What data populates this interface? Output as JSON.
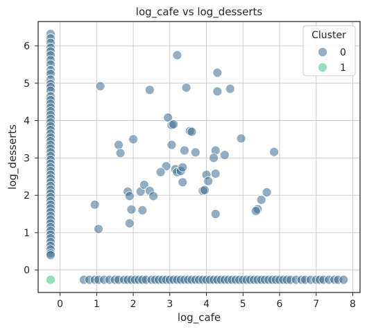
{
  "chart_data": {
    "type": "scatter",
    "title": "log_cafe vs log_desserts",
    "xlabel": "log_cafe",
    "ylabel": "log_desserts",
    "xlim": [
      -0.6,
      8.2
    ],
    "ylim": [
      -0.6,
      6.65
    ],
    "xticks": [
      0,
      1,
      2,
      3,
      4,
      5,
      6,
      7,
      8
    ],
    "yticks": [
      0,
      1,
      2,
      3,
      4,
      5,
      6
    ],
    "grid": true,
    "legend": {
      "title": "Cluster",
      "placement": "top-right",
      "entries": [
        {
          "label": "0",
          "color": "#3b6b90"
        },
        {
          "label": "1",
          "color": "#3ec27f"
        }
      ]
    },
    "series": [
      {
        "name": "0",
        "color": "#3b6b90",
        "points": [
          [
            -0.26,
            6.32
          ],
          [
            -0.26,
            6.2
          ],
          [
            -0.26,
            6.08
          ],
          [
            -0.26,
            5.95
          ],
          [
            -0.26,
            5.85
          ],
          [
            -0.26,
            5.75
          ],
          [
            -0.26,
            5.62
          ],
          [
            -0.26,
            5.5
          ],
          [
            -0.26,
            5.35
          ],
          [
            -0.26,
            5.25
          ],
          [
            -0.26,
            5.1
          ],
          [
            -0.26,
            4.98
          ],
          [
            -0.26,
            4.9
          ],
          [
            -0.26,
            4.8
          ],
          [
            -0.26,
            4.65
          ],
          [
            -0.26,
            4.55
          ],
          [
            -0.26,
            4.45
          ],
          [
            -0.26,
            4.35
          ],
          [
            -0.26,
            4.25
          ],
          [
            -0.26,
            4.15
          ],
          [
            -0.26,
            4.05
          ],
          [
            -0.26,
            3.95
          ],
          [
            -0.26,
            3.85
          ],
          [
            -0.26,
            3.75
          ],
          [
            -0.26,
            3.65
          ],
          [
            -0.26,
            3.55
          ],
          [
            -0.26,
            3.45
          ],
          [
            -0.26,
            3.35
          ],
          [
            -0.26,
            3.25
          ],
          [
            -0.26,
            3.15
          ],
          [
            -0.26,
            3.05
          ],
          [
            -0.26,
            2.95
          ],
          [
            -0.26,
            2.85
          ],
          [
            -0.26,
            2.75
          ],
          [
            -0.26,
            2.65
          ],
          [
            -0.26,
            2.55
          ],
          [
            -0.26,
            2.45
          ],
          [
            -0.26,
            2.35
          ],
          [
            -0.26,
            2.25
          ],
          [
            -0.26,
            2.15
          ],
          [
            -0.26,
            2.05
          ],
          [
            -0.26,
            1.95
          ],
          [
            -0.26,
            1.85
          ],
          [
            -0.26,
            1.75
          ],
          [
            -0.26,
            1.65
          ],
          [
            -0.26,
            1.55
          ],
          [
            -0.26,
            1.45
          ],
          [
            -0.26,
            1.35
          ],
          [
            -0.26,
            1.25
          ],
          [
            -0.26,
            1.15
          ],
          [
            -0.26,
            1.05
          ],
          [
            -0.26,
            0.95
          ],
          [
            -0.26,
            0.85
          ],
          [
            -0.26,
            0.75
          ],
          [
            -0.26,
            0.65
          ],
          [
            -0.26,
            0.55
          ],
          [
            -0.26,
            0.45
          ],
          [
            -0.26,
            0.4
          ],
          [
            1.1,
            4.92
          ],
          [
            0.95,
            1.75
          ],
          [
            1.05,
            1.1
          ],
          [
            1.6,
            3.35
          ],
          [
            1.65,
            3.13
          ],
          [
            2.0,
            3.5
          ],
          [
            2.45,
            4.82
          ],
          [
            1.85,
            2.1
          ],
          [
            1.9,
            1.98
          ],
          [
            1.95,
            1.62
          ],
          [
            1.9,
            1.25
          ],
          [
            2.2,
            2.1
          ],
          [
            2.3,
            2.28
          ],
          [
            2.45,
            2.12
          ],
          [
            2.55,
            1.98
          ],
          [
            2.25,
            1.6
          ],
          [
            3.2,
            5.75
          ],
          [
            2.95,
            4.08
          ],
          [
            3.05,
            3.88
          ],
          [
            3.1,
            3.9
          ],
          [
            3.45,
            4.88
          ],
          [
            3.55,
            3.72
          ],
          [
            3.6,
            3.7
          ],
          [
            3.05,
            3.35
          ],
          [
            3.4,
            3.2
          ],
          [
            3.7,
            3.15
          ],
          [
            3.15,
            2.7
          ],
          [
            3.2,
            2.62
          ],
          [
            3.3,
            2.65
          ],
          [
            2.9,
            2.78
          ],
          [
            2.75,
            2.62
          ],
          [
            3.35,
            2.75
          ],
          [
            3.35,
            2.35
          ],
          [
            4.3,
            5.28
          ],
          [
            4.3,
            4.78
          ],
          [
            4.65,
            4.85
          ],
          [
            4.95,
            3.52
          ],
          [
            4.25,
            3.2
          ],
          [
            4.2,
            3.0
          ],
          [
            4.5,
            3.08
          ],
          [
            4.0,
            2.55
          ],
          [
            4.25,
            2.58
          ],
          [
            4.05,
            2.38
          ],
          [
            3.9,
            2.12
          ],
          [
            3.95,
            2.14
          ],
          [
            4.25,
            1.5
          ],
          [
            5.85,
            3.16
          ],
          [
            5.65,
            2.08
          ],
          [
            5.5,
            1.88
          ],
          [
            5.4,
            1.63
          ],
          [
            5.35,
            1.58
          ],
          [
            0.65,
            -0.26
          ],
          [
            0.8,
            -0.26
          ],
          [
            0.95,
            -0.26
          ],
          [
            1.05,
            -0.26
          ],
          [
            1.2,
            -0.26
          ],
          [
            1.35,
            -0.26
          ],
          [
            1.5,
            -0.26
          ],
          [
            1.6,
            -0.26
          ],
          [
            1.75,
            -0.26
          ],
          [
            1.85,
            -0.26
          ],
          [
            1.95,
            -0.26
          ],
          [
            2.05,
            -0.26
          ],
          [
            2.15,
            -0.26
          ],
          [
            2.25,
            -0.26
          ],
          [
            2.35,
            -0.26
          ],
          [
            2.5,
            -0.26
          ],
          [
            2.6,
            -0.26
          ],
          [
            2.7,
            -0.26
          ],
          [
            2.8,
            -0.26
          ],
          [
            2.9,
            -0.26
          ],
          [
            3.0,
            -0.26
          ],
          [
            3.1,
            -0.26
          ],
          [
            3.2,
            -0.26
          ],
          [
            3.3,
            -0.26
          ],
          [
            3.4,
            -0.26
          ],
          [
            3.5,
            -0.26
          ],
          [
            3.6,
            -0.26
          ],
          [
            3.7,
            -0.26
          ],
          [
            3.8,
            -0.26
          ],
          [
            3.9,
            -0.26
          ],
          [
            4.0,
            -0.26
          ],
          [
            4.1,
            -0.26
          ],
          [
            4.2,
            -0.26
          ],
          [
            4.3,
            -0.26
          ],
          [
            4.4,
            -0.26
          ],
          [
            4.5,
            -0.26
          ],
          [
            4.6,
            -0.26
          ],
          [
            4.7,
            -0.26
          ],
          [
            4.8,
            -0.26
          ],
          [
            4.9,
            -0.26
          ],
          [
            5.0,
            -0.26
          ],
          [
            5.1,
            -0.26
          ],
          [
            5.2,
            -0.26
          ],
          [
            5.3,
            -0.26
          ],
          [
            5.4,
            -0.26
          ],
          [
            5.5,
            -0.26
          ],
          [
            5.6,
            -0.26
          ],
          [
            5.7,
            -0.26
          ],
          [
            5.8,
            -0.26
          ],
          [
            5.9,
            -0.26
          ],
          [
            6.0,
            -0.26
          ],
          [
            6.1,
            -0.26
          ],
          [
            6.2,
            -0.26
          ],
          [
            6.3,
            -0.26
          ],
          [
            6.45,
            -0.26
          ],
          [
            6.6,
            -0.26
          ],
          [
            6.7,
            -0.26
          ],
          [
            6.85,
            -0.26
          ],
          [
            7.0,
            -0.26
          ],
          [
            7.1,
            -0.26
          ],
          [
            7.2,
            -0.26
          ],
          [
            7.35,
            -0.26
          ],
          [
            7.5,
            -0.26
          ],
          [
            7.6,
            -0.26
          ],
          [
            7.75,
            -0.26
          ]
        ]
      },
      {
        "name": "1",
        "color": "#3ec27f",
        "points": [
          [
            -0.26,
            -0.26
          ]
        ]
      }
    ]
  }
}
